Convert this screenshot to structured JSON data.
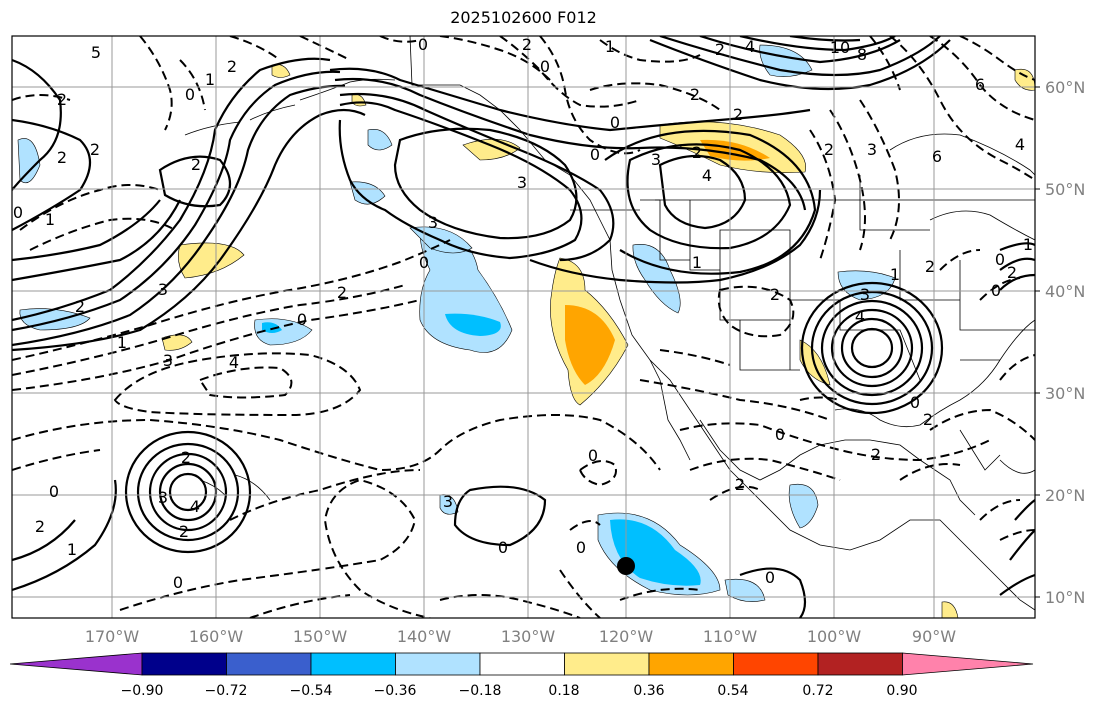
{
  "title": "2025102600 F012",
  "map": {
    "lat_labels": [
      "60°N",
      "50°N",
      "40°N",
      "30°N",
      "20°N",
      "10°N"
    ],
    "lon_labels": [
      "170°W",
      "160°W",
      "150°W",
      "140°W",
      "130°W",
      "120°W",
      "110°W",
      "100°W",
      "90°W"
    ],
    "contour_labels": [
      "5",
      "2",
      "1",
      "2",
      "0",
      "2",
      "1",
      "4",
      "2",
      "2",
      "2",
      "0",
      "1",
      "2",
      "1",
      "3",
      "0",
      "4",
      "3",
      "0",
      "3",
      "2",
      "4",
      "2",
      "3",
      "0",
      "2",
      "10",
      "8",
      "6",
      "4",
      "6",
      "2",
      "3",
      "1",
      "0",
      "2",
      "1",
      "2",
      "4",
      "3",
      "2",
      "0",
      "0",
      "2",
      "0",
      "2",
      "2",
      "2",
      "3",
      "4",
      "2",
      "0",
      "1",
      "2",
      "0",
      "3",
      "0",
      "0",
      "0",
      "0",
      "2",
      "1",
      "0",
      "2",
      "0",
      "0",
      "3"
    ],
    "marker": "filled-circle"
  },
  "colorbar": {
    "colors": [
      "#9a32cd",
      "#00008b",
      "#3a5fcd",
      "#00bfff",
      "#b0e2ff",
      "#ffffff",
      "#ffec8b",
      "#ffa500",
      "#ff4500",
      "#b22222",
      "#ff82ab"
    ],
    "tick_labels": [
      "−0.90",
      "−0.72",
      "−0.54",
      "−0.36",
      "−0.18",
      "0.18",
      "0.36",
      "0.54",
      "0.72",
      "0.90"
    ]
  }
}
